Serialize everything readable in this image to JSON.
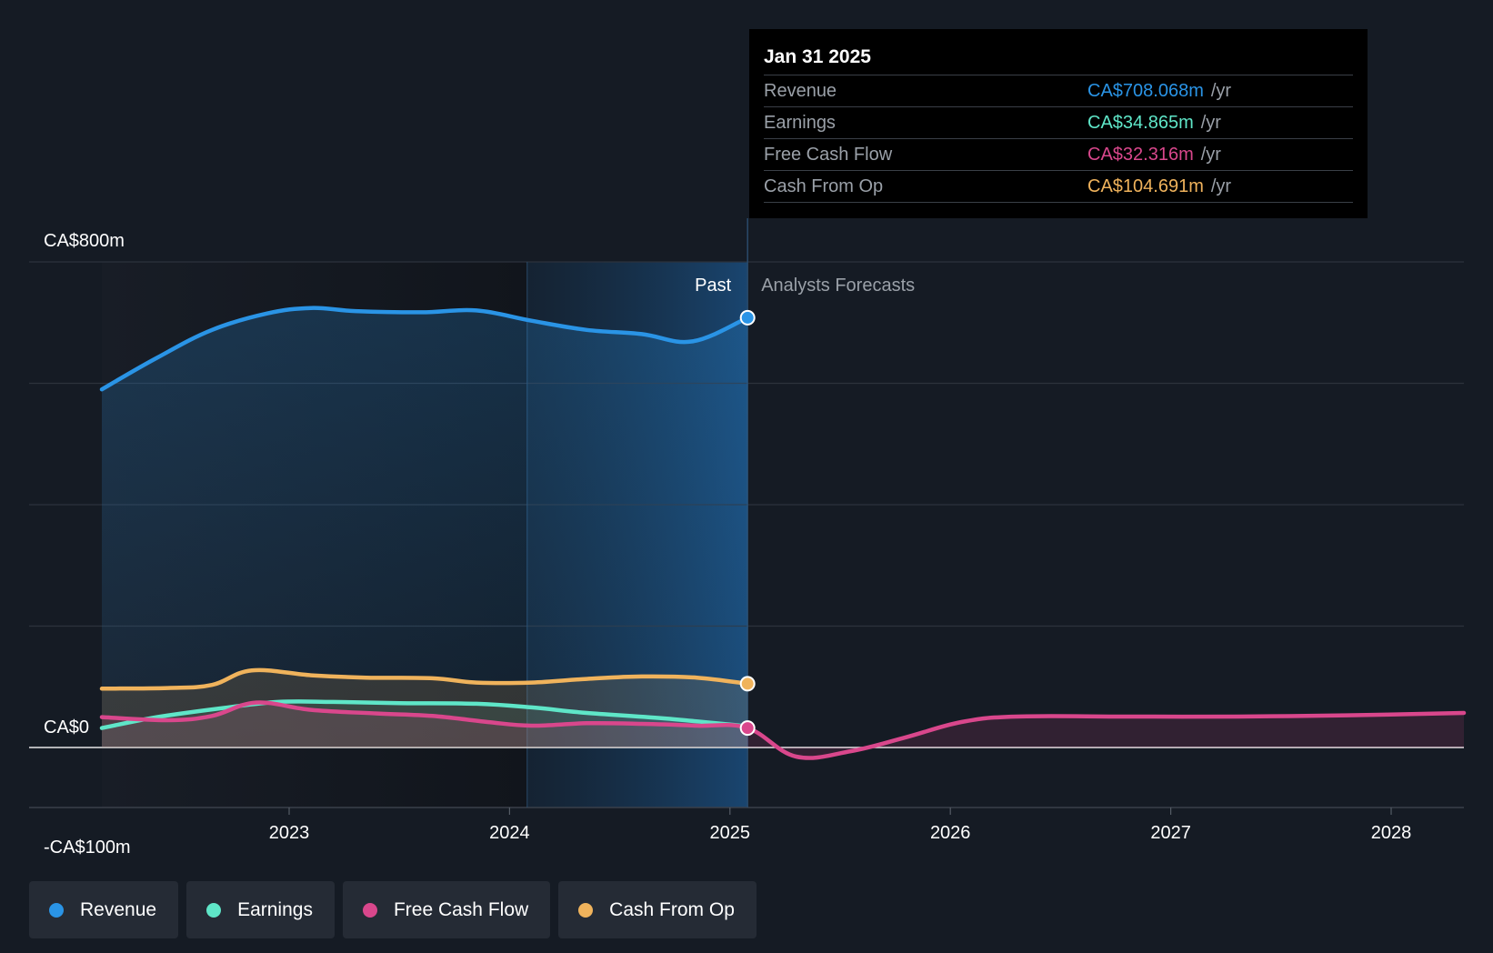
{
  "tooltip": {
    "date": "Jan 31 2025",
    "rows": [
      {
        "name": "Revenue",
        "value": "CA$708.068m",
        "unit": "/yr",
        "color": "#2a94e6"
      },
      {
        "name": "Earnings",
        "value": "CA$34.865m",
        "unit": "/yr",
        "color": "#5fe6c8"
      },
      {
        "name": "Free Cash Flow",
        "value": "CA$32.316m",
        "unit": "/yr",
        "color": "#d9478c"
      },
      {
        "name": "Cash From Op",
        "value": "CA$104.691m",
        "unit": "/yr",
        "color": "#f0b35c"
      }
    ]
  },
  "legend": [
    {
      "label": "Revenue",
      "color": "#2a94e6"
    },
    {
      "label": "Earnings",
      "color": "#5fe6c8"
    },
    {
      "label": "Free Cash Flow",
      "color": "#d9478c"
    },
    {
      "label": "Cash From Op",
      "color": "#f0b35c"
    }
  ],
  "chart_data": {
    "type": "line",
    "y_axis_labels": [
      "CA$800m",
      "CA$0",
      "-CA$100m"
    ],
    "ylim": [
      -100,
      800
    ],
    "xlim": [
      2022.15,
      2028.33
    ],
    "x_ticks": [
      2023,
      2024,
      2025,
      2026,
      2027,
      2028
    ],
    "x_tick_labels": [
      "2023",
      "2024",
      "2025",
      "2026",
      "2027",
      "2028"
    ],
    "past_label": "Past",
    "forecast_label": "Analysts Forecasts",
    "past_end": 2025.08,
    "highlight_start": 2024.08,
    "grid": true,
    "series": [
      {
        "name": "Revenue",
        "color": "#2a94e6",
        "points": [
          [
            2022.15,
            590
          ],
          [
            2022.4,
            642
          ],
          [
            2022.65,
            688
          ],
          [
            2022.9,
            715
          ],
          [
            2023.1,
            724
          ],
          [
            2023.3,
            719
          ],
          [
            2023.6,
            717
          ],
          [
            2023.85,
            720
          ],
          [
            2024.1,
            703
          ],
          [
            2024.35,
            688
          ],
          [
            2024.6,
            681
          ],
          [
            2024.83,
            669
          ],
          [
            2025.08,
            708
          ]
        ]
      },
      {
        "name": "Earnings",
        "color": "#5fe6c8",
        "points": [
          [
            2022.15,
            32
          ],
          [
            2022.4,
            50
          ],
          [
            2022.7,
            65
          ],
          [
            2022.95,
            75
          ],
          [
            2023.2,
            75
          ],
          [
            2023.5,
            73
          ],
          [
            2023.85,
            72
          ],
          [
            2024.1,
            66
          ],
          [
            2024.35,
            57
          ],
          [
            2024.7,
            48
          ],
          [
            2025.08,
            35
          ]
        ]
      },
      {
        "name": "Free Cash Flow",
        "color": "#d9478c",
        "points": [
          [
            2022.15,
            50
          ],
          [
            2022.45,
            45
          ],
          [
            2022.65,
            52
          ],
          [
            2022.85,
            74
          ],
          [
            2023.1,
            62
          ],
          [
            2023.4,
            56
          ],
          [
            2023.65,
            52
          ],
          [
            2023.9,
            42
          ],
          [
            2024.1,
            36
          ],
          [
            2024.35,
            40
          ],
          [
            2024.6,
            39
          ],
          [
            2024.85,
            36
          ],
          [
            2025.08,
            32
          ],
          [
            2025.3,
            -15
          ],
          [
            2025.55,
            -6
          ],
          [
            2025.8,
            17
          ],
          [
            2026.05,
            42
          ],
          [
            2026.3,
            51
          ],
          [
            2026.8,
            51
          ],
          [
            2027.3,
            51
          ],
          [
            2027.8,
            53
          ],
          [
            2028.33,
            57
          ]
        ]
      },
      {
        "name": "Cash From Op",
        "color": "#f0b35c",
        "points": [
          [
            2022.15,
            97
          ],
          [
            2022.45,
            98
          ],
          [
            2022.65,
            103
          ],
          [
            2022.83,
            127
          ],
          [
            2023.1,
            119
          ],
          [
            2023.35,
            115
          ],
          [
            2023.65,
            114
          ],
          [
            2023.85,
            107
          ],
          [
            2024.1,
            107
          ],
          [
            2024.35,
            113
          ],
          [
            2024.6,
            117
          ],
          [
            2024.85,
            115
          ],
          [
            2025.08,
            105
          ]
        ]
      }
    ]
  }
}
